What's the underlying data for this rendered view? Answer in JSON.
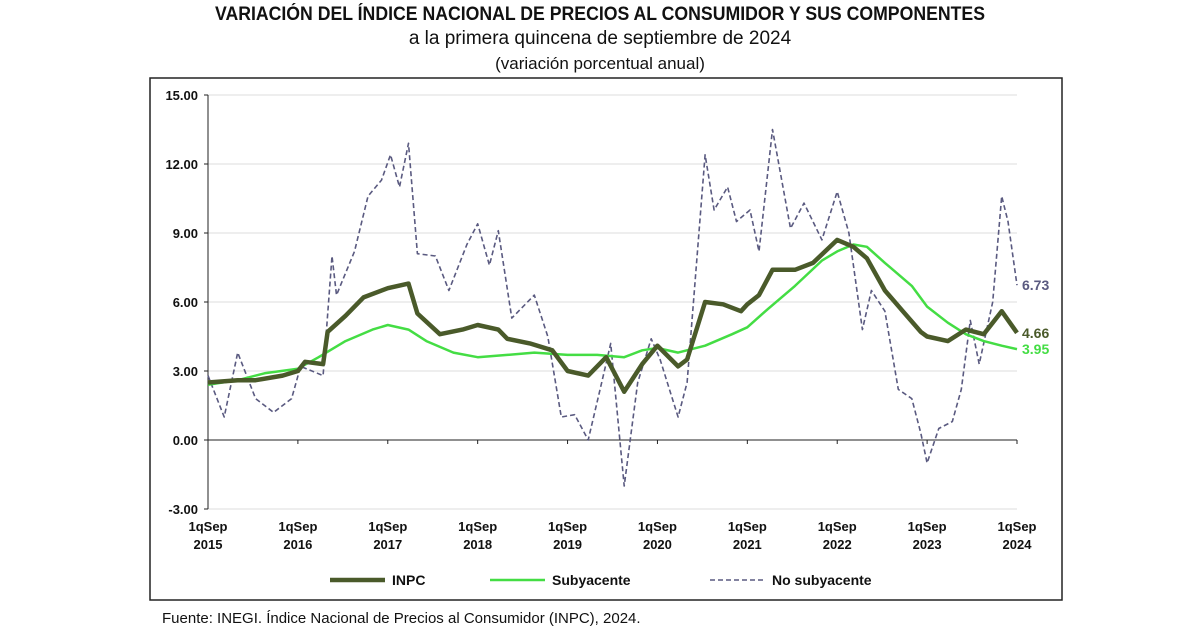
{
  "chart_data": {
    "type": "line",
    "title": "VARIACIÓN DEL ÍNDICE NACIONAL DE PRECIOS AL CONSUMIDOR Y SUS COMPONENTES",
    "subtitle": "a la primera quincena de septiembre de 2024",
    "subtitle2": "(variación porcentual anual)",
    "ylim": [
      -3,
      15
    ],
    "yticks": [
      "15.00",
      "12.00",
      "9.00",
      "6.00",
      "3.00",
      "0.00",
      "-3.00"
    ],
    "ytick_values": [
      15,
      12,
      9,
      6,
      3,
      0,
      -3
    ],
    "xlim": [
      2015.67,
      2024.67
    ],
    "xticks": [
      {
        "l1": "1qSep",
        "l2": "2015",
        "v": 2015.67
      },
      {
        "l1": "1qSep",
        "l2": "2016",
        "v": 2016.67
      },
      {
        "l1": "1qSep",
        "l2": "2017",
        "v": 2017.67
      },
      {
        "l1": "1qSep",
        "l2": "2018",
        "v": 2018.67
      },
      {
        "l1": "1qSep",
        "l2": "2019",
        "v": 2019.67
      },
      {
        "l1": "1qSep",
        "l2": "2020",
        "v": 2020.67
      },
      {
        "l1": "1qSep",
        "l2": "2021",
        "v": 2021.67
      },
      {
        "l1": "1qSep",
        "l2": "2022",
        "v": 2022.67
      },
      {
        "l1": "1qSep",
        "l2": "2023",
        "v": 2023.67
      },
      {
        "l1": "1qSep",
        "l2": "2024",
        "v": 2024.67
      }
    ],
    "legend_position": "bottom",
    "series": [
      {
        "name": "INPC",
        "color": "#4a5a2a",
        "style": "solid",
        "end_label": "4.66",
        "points": [
          [
            2015.67,
            2.5
          ],
          [
            2016.0,
            2.6
          ],
          [
            2016.2,
            2.6
          ],
          [
            2016.5,
            2.8
          ],
          [
            2016.67,
            3.0
          ],
          [
            2016.75,
            3.4
          ],
          [
            2016.95,
            3.3
          ],
          [
            2017.0,
            4.7
          ],
          [
            2017.2,
            5.4
          ],
          [
            2017.4,
            6.2
          ],
          [
            2017.67,
            6.6
          ],
          [
            2017.9,
            6.8
          ],
          [
            2018.0,
            5.5
          ],
          [
            2018.25,
            4.6
          ],
          [
            2018.5,
            4.8
          ],
          [
            2018.67,
            5.0
          ],
          [
            2018.9,
            4.8
          ],
          [
            2019.0,
            4.4
          ],
          [
            2019.25,
            4.2
          ],
          [
            2019.5,
            3.9
          ],
          [
            2019.67,
            3.0
          ],
          [
            2019.9,
            2.8
          ],
          [
            2020.1,
            3.6
          ],
          [
            2020.3,
            2.1
          ],
          [
            2020.5,
            3.3
          ],
          [
            2020.67,
            4.1
          ],
          [
            2020.9,
            3.2
          ],
          [
            2021.0,
            3.5
          ],
          [
            2021.2,
            6.0
          ],
          [
            2021.4,
            5.9
          ],
          [
            2021.6,
            5.6
          ],
          [
            2021.67,
            5.9
          ],
          [
            2021.8,
            6.3
          ],
          [
            2021.95,
            7.4
          ],
          [
            2022.2,
            7.4
          ],
          [
            2022.4,
            7.7
          ],
          [
            2022.67,
            8.7
          ],
          [
            2022.85,
            8.4
          ],
          [
            2023.0,
            7.9
          ],
          [
            2023.2,
            6.5
          ],
          [
            2023.4,
            5.6
          ],
          [
            2023.6,
            4.7
          ],
          [
            2023.67,
            4.5
          ],
          [
            2023.9,
            4.3
          ],
          [
            2024.1,
            4.8
          ],
          [
            2024.3,
            4.6
          ],
          [
            2024.5,
            5.6
          ],
          [
            2024.67,
            4.66
          ]
        ]
      },
      {
        "name": "Subyacente",
        "color": "#44dd44",
        "style": "solid",
        "end_label": "3.95",
        "points": [
          [
            2015.67,
            2.4
          ],
          [
            2016.0,
            2.6
          ],
          [
            2016.3,
            2.9
          ],
          [
            2016.67,
            3.1
          ],
          [
            2016.9,
            3.6
          ],
          [
            2017.2,
            4.3
          ],
          [
            2017.5,
            4.8
          ],
          [
            2017.67,
            5.0
          ],
          [
            2017.9,
            4.8
          ],
          [
            2018.1,
            4.3
          ],
          [
            2018.4,
            3.8
          ],
          [
            2018.67,
            3.6
          ],
          [
            2019.0,
            3.7
          ],
          [
            2019.3,
            3.8
          ],
          [
            2019.67,
            3.7
          ],
          [
            2020.0,
            3.7
          ],
          [
            2020.3,
            3.6
          ],
          [
            2020.5,
            3.9
          ],
          [
            2020.67,
            4.0
          ],
          [
            2020.9,
            3.8
          ],
          [
            2021.2,
            4.1
          ],
          [
            2021.5,
            4.6
          ],
          [
            2021.67,
            4.9
          ],
          [
            2021.9,
            5.7
          ],
          [
            2022.2,
            6.7
          ],
          [
            2022.5,
            7.8
          ],
          [
            2022.67,
            8.2
          ],
          [
            2022.85,
            8.5
          ],
          [
            2023.0,
            8.4
          ],
          [
            2023.2,
            7.7
          ],
          [
            2023.5,
            6.7
          ],
          [
            2023.67,
            5.8
          ],
          [
            2023.9,
            5.1
          ],
          [
            2024.1,
            4.6
          ],
          [
            2024.3,
            4.3
          ],
          [
            2024.5,
            4.1
          ],
          [
            2024.67,
            3.95
          ]
        ]
      },
      {
        "name": "No subyacente",
        "color": "#5a5a80",
        "style": "dashed",
        "end_label": "6.73",
        "points": [
          [
            2015.67,
            2.8
          ],
          [
            2015.85,
            1.0
          ],
          [
            2016.0,
            3.8
          ],
          [
            2016.2,
            1.8
          ],
          [
            2016.4,
            1.2
          ],
          [
            2016.6,
            1.8
          ],
          [
            2016.7,
            3.2
          ],
          [
            2016.95,
            2.8
          ],
          [
            2017.05,
            8.0
          ],
          [
            2017.1,
            6.3
          ],
          [
            2017.3,
            8.2
          ],
          [
            2017.45,
            10.6
          ],
          [
            2017.6,
            11.3
          ],
          [
            2017.7,
            12.4
          ],
          [
            2017.8,
            11.0
          ],
          [
            2017.9,
            12.9
          ],
          [
            2018.0,
            8.1
          ],
          [
            2018.2,
            8.0
          ],
          [
            2018.35,
            6.5
          ],
          [
            2018.55,
            8.5
          ],
          [
            2018.67,
            9.4
          ],
          [
            2018.8,
            7.6
          ],
          [
            2018.9,
            9.1
          ],
          [
            2019.05,
            5.3
          ],
          [
            2019.3,
            6.3
          ],
          [
            2019.45,
            4.5
          ],
          [
            2019.6,
            1.0
          ],
          [
            2019.75,
            1.1
          ],
          [
            2019.9,
            0.0
          ],
          [
            2020.05,
            2.5
          ],
          [
            2020.15,
            4.2
          ],
          [
            2020.3,
            -2.0
          ],
          [
            2020.45,
            2.5
          ],
          [
            2020.6,
            4.4
          ],
          [
            2020.7,
            3.5
          ],
          [
            2020.9,
            1.0
          ],
          [
            2021.0,
            2.5
          ],
          [
            2021.2,
            12.4
          ],
          [
            2021.3,
            10.0
          ],
          [
            2021.45,
            11.0
          ],
          [
            2021.55,
            9.5
          ],
          [
            2021.7,
            10.0
          ],
          [
            2021.8,
            8.2
          ],
          [
            2021.95,
            13.5
          ],
          [
            2022.15,
            9.2
          ],
          [
            2022.3,
            10.3
          ],
          [
            2022.5,
            8.7
          ],
          [
            2022.67,
            10.8
          ],
          [
            2022.8,
            9.0
          ],
          [
            2022.95,
            4.8
          ],
          [
            2023.05,
            6.5
          ],
          [
            2023.2,
            5.6
          ],
          [
            2023.35,
            2.2
          ],
          [
            2023.5,
            1.8
          ],
          [
            2023.6,
            0.3
          ],
          [
            2023.67,
            -1.0
          ],
          [
            2023.8,
            0.5
          ],
          [
            2023.95,
            0.8
          ],
          [
            2024.05,
            2.2
          ],
          [
            2024.15,
            5.2
          ],
          [
            2024.25,
            3.3
          ],
          [
            2024.4,
            6.0
          ],
          [
            2024.5,
            10.6
          ],
          [
            2024.57,
            9.5
          ],
          [
            2024.67,
            6.73
          ]
        ]
      }
    ]
  },
  "source": "Fuente: INEGI. Índice Nacional de Precios al Consumidor (INPC), 2024."
}
